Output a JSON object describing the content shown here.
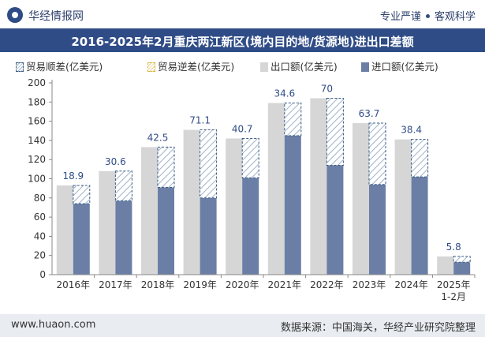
{
  "header": {
    "brand": "华经情报网",
    "tagline_left": "专业严谨",
    "tagline_right": "客观科学"
  },
  "chart_title": "2016-2025年2月重庆两江新区(境内目的地/货源地)进出口差额",
  "legend": {
    "surplus": "贸易顺差(亿美元)",
    "deficit": "贸易逆差(亿美元)",
    "export": "出口额(亿美元)",
    "import": "进口额(亿美元)"
  },
  "colors": {
    "header_bar": "#2f4c86",
    "export": "#d6d6d6",
    "import": "#6b7fa6",
    "surplus_hatch": "#9fb2c8",
    "surplus_border": "#3a5b86",
    "deficit_hatch": "#ead18a"
  },
  "chart_data": {
    "type": "bar",
    "categories": [
      "2016年",
      "2017年",
      "2018年",
      "2019年",
      "2020年",
      "2021年",
      "2022年",
      "2023年",
      "2024年",
      "2025年\n1-2月"
    ],
    "series": [
      {
        "name": "出口额(亿美元)",
        "values": [
          93,
          108,
          133,
          151,
          142,
          179,
          184,
          158,
          141,
          19
        ]
      },
      {
        "name": "进口额(亿美元)",
        "values": [
          74,
          77,
          91,
          80,
          101,
          145,
          114,
          94,
          102,
          13
        ]
      },
      {
        "name": "贸易顺差(亿美元)",
        "values": [
          18.9,
          30.6,
          42.5,
          71.1,
          40.7,
          34.6,
          70,
          63.7,
          38.4,
          5.8
        ]
      },
      {
        "name": "贸易逆差(亿美元)",
        "values": [
          0,
          0,
          0,
          0,
          0,
          0,
          0,
          0,
          0,
          0
        ]
      }
    ],
    "surplus_labels": [
      "18.9",
      "30.6",
      "42.5",
      "71.1",
      "40.7",
      "34.6",
      "70",
      "63.7",
      "38.4",
      "5.8"
    ],
    "y_ticks": [
      0,
      20,
      40,
      60,
      80,
      100,
      120,
      140,
      160,
      180,
      200
    ],
    "ylim": [
      0,
      200
    ],
    "legend_position": "top",
    "grid": false
  },
  "footer": {
    "site": "www.huaon.com",
    "source": "数据来源：中国海关，华经产业研究院整理"
  }
}
